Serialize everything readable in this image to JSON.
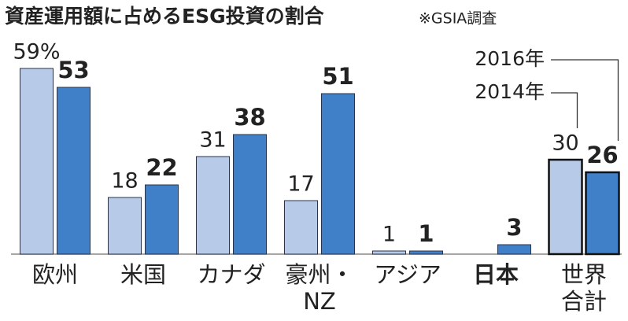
{
  "chart_data": {
    "type": "bar",
    "title": "資産運用額に占めるESG投資の割合",
    "subtitle": "※GSIA調査",
    "categories": [
      "欧州",
      "米国",
      "カナダ",
      "豪州・NZ",
      "アジア",
      "日本",
      "世界合計"
    ],
    "series": [
      {
        "name": "2014年",
        "color": "#b7cbe9",
        "values": [
          59,
          18,
          31,
          17,
          1,
          null,
          30
        ],
        "value_labels": [
          "59%",
          "18",
          "31",
          "17",
          "1",
          null,
          "30"
        ]
      },
      {
        "name": "2016年",
        "color": "#4080c8",
        "values": [
          53,
          22,
          38,
          51,
          1,
          3,
          26
        ]
      }
    ]
  }
}
